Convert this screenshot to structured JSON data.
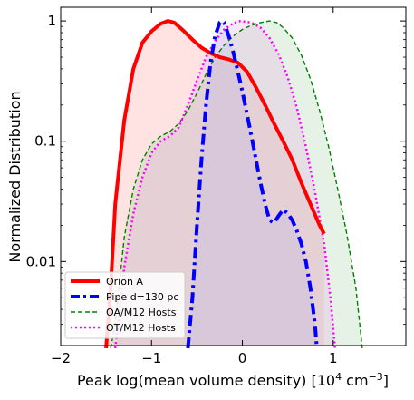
{
  "chart_data": {
    "type": "area",
    "title": "",
    "xlabel_main": "Peak log(mean volume density) [10",
    "xlabel_exp1": "4",
    "xlabel_mid": " cm",
    "xlabel_exp2": "−3",
    "xlabel_end": "]",
    "ylabel": "Normalized Distribution",
    "xlim": [
      -2,
      1.8
    ],
    "ylim": [
      0.002,
      1.3
    ],
    "yscale": "log",
    "x_ticks": [
      {
        "value": -2,
        "label": "−2"
      },
      {
        "value": -1,
        "label": "−1"
      },
      {
        "value": 0,
        "label": "0"
      },
      {
        "value": 1,
        "label": "1"
      }
    ],
    "y_ticks": [
      {
        "value": 1,
        "label": "1"
      },
      {
        "value": 0.1,
        "label": "0.1"
      },
      {
        "value": 0.01,
        "label": "0.01"
      }
    ],
    "legend_position": "bottom-left",
    "series": [
      {
        "name": "Orion A",
        "color": "#ff0000",
        "fill": "#ff9999",
        "fill_opacity": 0.28,
        "dash": "solid",
        "stroke_width": 4,
        "points": [
          [
            -1.5,
            0.0019
          ],
          [
            -1.45,
            0.006
          ],
          [
            -1.4,
            0.03
          ],
          [
            -1.3,
            0.15
          ],
          [
            -1.2,
            0.4
          ],
          [
            -1.1,
            0.66
          ],
          [
            -1.0,
            0.82
          ],
          [
            -0.9,
            0.95
          ],
          [
            -0.82,
            1.0
          ],
          [
            -0.75,
            0.97
          ],
          [
            -0.65,
            0.83
          ],
          [
            -0.55,
            0.7
          ],
          [
            -0.45,
            0.6
          ],
          [
            -0.35,
            0.54
          ],
          [
            -0.25,
            0.5
          ],
          [
            -0.15,
            0.48
          ],
          [
            -0.05,
            0.45
          ],
          [
            0.05,
            0.38
          ],
          [
            0.15,
            0.28
          ],
          [
            0.25,
            0.2
          ],
          [
            0.35,
            0.14
          ],
          [
            0.45,
            0.1
          ],
          [
            0.55,
            0.07
          ],
          [
            0.65,
            0.045
          ],
          [
            0.75,
            0.03
          ],
          [
            0.85,
            0.02
          ],
          [
            0.9,
            0.017
          ]
        ]
      },
      {
        "name": "Pipe d=130 pc",
        "color": "#0000ff",
        "fill": "#9999ff",
        "fill_opacity": 0.22,
        "dash": "dashdot",
        "stroke_width": 4,
        "points": [
          [
            -0.6,
            0.0019
          ],
          [
            -0.55,
            0.005
          ],
          [
            -0.5,
            0.02
          ],
          [
            -0.45,
            0.07
          ],
          [
            -0.4,
            0.2
          ],
          [
            -0.35,
            0.45
          ],
          [
            -0.3,
            0.75
          ],
          [
            -0.25,
            0.97
          ],
          [
            -0.22,
            1.0
          ],
          [
            -0.2,
            0.97
          ],
          [
            -0.15,
            0.75
          ],
          [
            -0.1,
            0.55
          ],
          [
            -0.05,
            0.38
          ],
          [
            0.0,
            0.26
          ],
          [
            0.05,
            0.17
          ],
          [
            0.1,
            0.11
          ],
          [
            0.15,
            0.07
          ],
          [
            0.2,
            0.045
          ],
          [
            0.25,
            0.03
          ],
          [
            0.3,
            0.022
          ],
          [
            0.35,
            0.021
          ],
          [
            0.4,
            0.024
          ],
          [
            0.45,
            0.027
          ],
          [
            0.5,
            0.025
          ],
          [
            0.55,
            0.022
          ],
          [
            0.6,
            0.018
          ],
          [
            0.65,
            0.014
          ],
          [
            0.7,
            0.01
          ],
          [
            0.75,
            0.006
          ],
          [
            0.8,
            0.003
          ],
          [
            0.82,
            0.0019
          ]
        ]
      },
      {
        "name": "OA/M12 Hosts",
        "color": "#008000",
        "fill": "#99cc99",
        "fill_opacity": 0.25,
        "dash": "dashed",
        "stroke_width": 1.4,
        "points": [
          [
            -1.45,
            0.0019
          ],
          [
            -1.4,
            0.003
          ],
          [
            -1.35,
            0.007
          ],
          [
            -1.3,
            0.016
          ],
          [
            -1.2,
            0.04
          ],
          [
            -1.1,
            0.07
          ],
          [
            -1.0,
            0.095
          ],
          [
            -0.9,
            0.11
          ],
          [
            -0.8,
            0.12
          ],
          [
            -0.7,
            0.14
          ],
          [
            -0.6,
            0.18
          ],
          [
            -0.5,
            0.25
          ],
          [
            -0.4,
            0.36
          ],
          [
            -0.3,
            0.5
          ],
          [
            -0.2,
            0.63
          ],
          [
            -0.1,
            0.75
          ],
          [
            0.0,
            0.85
          ],
          [
            0.1,
            0.92
          ],
          [
            0.2,
            0.97
          ],
          [
            0.3,
            1.0
          ],
          [
            0.38,
            0.97
          ],
          [
            0.45,
            0.88
          ],
          [
            0.55,
            0.72
          ],
          [
            0.65,
            0.52
          ],
          [
            0.75,
            0.33
          ],
          [
            0.85,
            0.18
          ],
          [
            0.95,
            0.09
          ],
          [
            1.05,
            0.04
          ],
          [
            1.15,
            0.017
          ],
          [
            1.25,
            0.006
          ],
          [
            1.32,
            0.0019
          ]
        ]
      },
      {
        "name": "OT/M12 Hosts",
        "color": "#ff00ff",
        "fill": "#e6b3e6",
        "fill_opacity": 0.3,
        "dash": "dotted",
        "stroke_width": 2.5,
        "points": [
          [
            -1.4,
            0.0019
          ],
          [
            -1.35,
            0.004
          ],
          [
            -1.3,
            0.009
          ],
          [
            -1.2,
            0.025
          ],
          [
            -1.1,
            0.05
          ],
          [
            -1.0,
            0.08
          ],
          [
            -0.9,
            0.1
          ],
          [
            -0.8,
            0.11
          ],
          [
            -0.7,
            0.13
          ],
          [
            -0.6,
            0.2
          ],
          [
            -0.5,
            0.32
          ],
          [
            -0.4,
            0.5
          ],
          [
            -0.3,
            0.68
          ],
          [
            -0.2,
            0.85
          ],
          [
            -0.1,
            0.96
          ],
          [
            -0.02,
            1.0
          ],
          [
            0.1,
            0.97
          ],
          [
            0.2,
            0.88
          ],
          [
            0.3,
            0.72
          ],
          [
            0.4,
            0.53
          ],
          [
            0.5,
            0.34
          ],
          [
            0.6,
            0.19
          ],
          [
            0.7,
            0.09
          ],
          [
            0.8,
            0.038
          ],
          [
            0.9,
            0.014
          ],
          [
            0.97,
            0.005
          ],
          [
            1.02,
            0.0019
          ]
        ]
      }
    ]
  }
}
